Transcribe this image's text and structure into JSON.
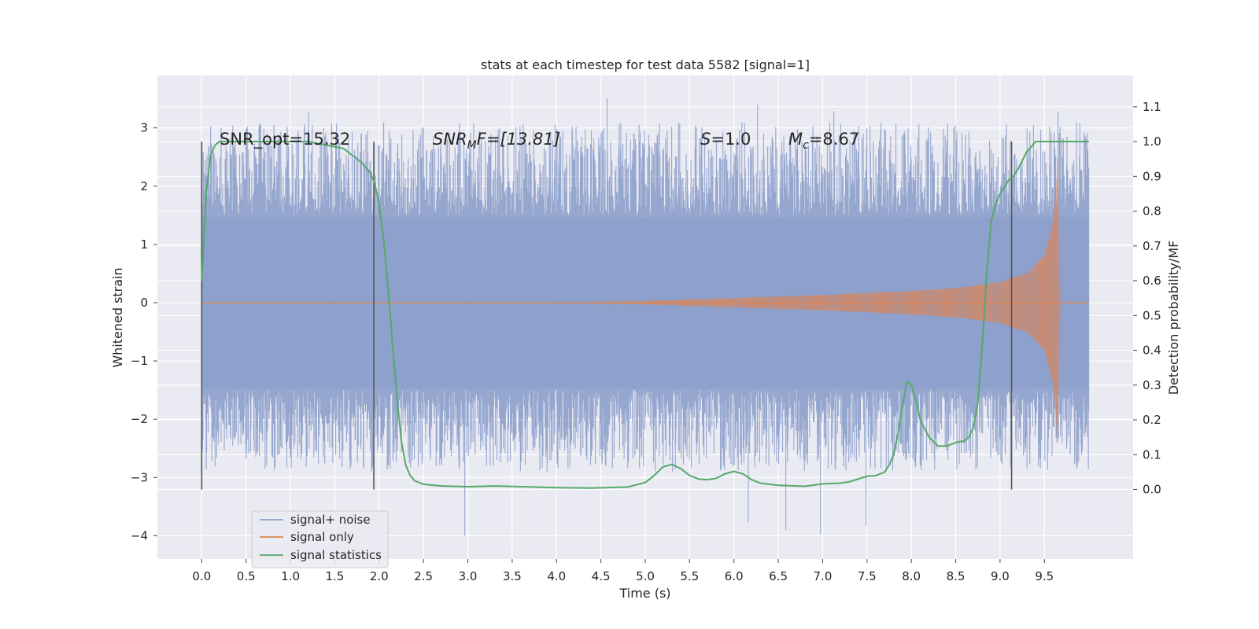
{
  "chart_data": {
    "type": "line",
    "title": "stats at each timestep for test data 5582 [signal=1]",
    "xlabel": "Time (s)",
    "ylabel": "Whitened strain",
    "y2label": "Detection probability/MF",
    "xlim": [
      -0.5,
      10.5
    ],
    "ylim": [
      -4.4,
      3.9
    ],
    "y2lim": [
      -0.2,
      1.19
    ],
    "xticks": [
      "0.0",
      "0.5",
      "1.0",
      "1.5",
      "2.0",
      "2.5",
      "3.0",
      "3.5",
      "4.0",
      "4.5",
      "5.0",
      "5.5",
      "6.0",
      "6.5",
      "7.0",
      "7.5",
      "8.0",
      "8.5",
      "9.0",
      "9.5"
    ],
    "yticks": [
      "3",
      "2",
      "1",
      "0",
      "−1",
      "−2",
      "−3",
      "−4"
    ],
    "y2ticks": [
      "1.1",
      "1.0",
      "0.9",
      "0.8",
      "0.7",
      "0.6",
      "0.5",
      "0.4",
      "0.3",
      "0.2",
      "0.1",
      "0.0"
    ],
    "grid": true,
    "legend_position": "lower-left",
    "colors": {
      "background": "#eaeaf2",
      "noise": "#8da0cb",
      "signal": "#dd8452",
      "stats": "#55a868",
      "vlines": "#555555"
    },
    "annotations": {
      "snr_opt": "SNR_opt=15.32",
      "snr_mf_prefix": "SNR",
      "snr_mf_sub": "M",
      "snr_mf_suffix": "F=[13.81]",
      "s_prefix": "S",
      "s_suffix": "=1.0",
      "mc_prefix": "M",
      "mc_sub": "c",
      "mc_suffix": "=8.67"
    },
    "vertical_lines_x": [
      0.0,
      1.94,
      9.13
    ],
    "series": [
      {
        "name": "signal+ noise",
        "x_range": [
          0.0,
          10.0
        ],
        "envelope_typical": [
          -1.5,
          1.5
        ],
        "peaks_max": 3.55,
        "peaks_min": -4.05
      },
      {
        "name": "signal only",
        "x": [
          0.0,
          4.0,
          5.0,
          6.0,
          7.0,
          8.0,
          8.5,
          9.0,
          9.3,
          9.5,
          9.6,
          9.65,
          9.68,
          10.0
        ],
        "amplitude": [
          0.0,
          0.0,
          0.03,
          0.08,
          0.13,
          0.2,
          0.25,
          0.35,
          0.5,
          0.8,
          1.4,
          2.4,
          0.02,
          0.0
        ]
      },
      {
        "name": "signal statistics",
        "axis": "right",
        "x": [
          0.0,
          0.05,
          0.1,
          0.15,
          0.2,
          0.3,
          0.5,
          0.8,
          1.0,
          1.2,
          1.4,
          1.6,
          1.7,
          1.8,
          1.9,
          1.95,
          2.0,
          2.05,
          2.1,
          2.15,
          2.2,
          2.25,
          2.3,
          2.35,
          2.4,
          2.5,
          2.7,
          3.0,
          3.3,
          3.6,
          4.0,
          4.4,
          4.8,
          5.0,
          5.1,
          5.2,
          5.3,
          5.4,
          5.5,
          5.6,
          5.7,
          5.8,
          5.9,
          6.0,
          6.1,
          6.2,
          6.3,
          6.5,
          6.8,
          7.0,
          7.2,
          7.3,
          7.4,
          7.5,
          7.6,
          7.7,
          7.75,
          7.8,
          7.85,
          7.9,
          7.95,
          8.0,
          8.05,
          8.1,
          8.2,
          8.3,
          8.4,
          8.5,
          8.6,
          8.65,
          8.7,
          8.75,
          8.8,
          8.85,
          8.9,
          8.95,
          9.0,
          9.05,
          9.1,
          9.15,
          9.2,
          9.3,
          9.4,
          9.5,
          9.6,
          9.8,
          10.0
        ],
        "values": [
          0.6,
          0.85,
          0.96,
          0.99,
          1.0,
          1.0,
          1.0,
          1.0,
          1.0,
          1.0,
          0.99,
          0.98,
          0.96,
          0.94,
          0.91,
          0.88,
          0.82,
          0.72,
          0.58,
          0.42,
          0.27,
          0.14,
          0.07,
          0.04,
          0.025,
          0.015,
          0.01,
          0.008,
          0.01,
          0.008,
          0.005,
          0.004,
          0.007,
          0.02,
          0.04,
          0.065,
          0.072,
          0.06,
          0.04,
          0.03,
          0.028,
          0.032,
          0.045,
          0.052,
          0.045,
          0.028,
          0.018,
          0.012,
          0.009,
          0.016,
          0.018,
          0.022,
          0.03,
          0.038,
          0.04,
          0.05,
          0.07,
          0.1,
          0.16,
          0.24,
          0.31,
          0.3,
          0.26,
          0.2,
          0.15,
          0.125,
          0.125,
          0.135,
          0.14,
          0.15,
          0.18,
          0.25,
          0.42,
          0.62,
          0.77,
          0.82,
          0.85,
          0.87,
          0.89,
          0.9,
          0.92,
          0.97,
          1.0,
          1.0,
          1.0,
          1.0,
          1.0
        ]
      }
    ]
  }
}
